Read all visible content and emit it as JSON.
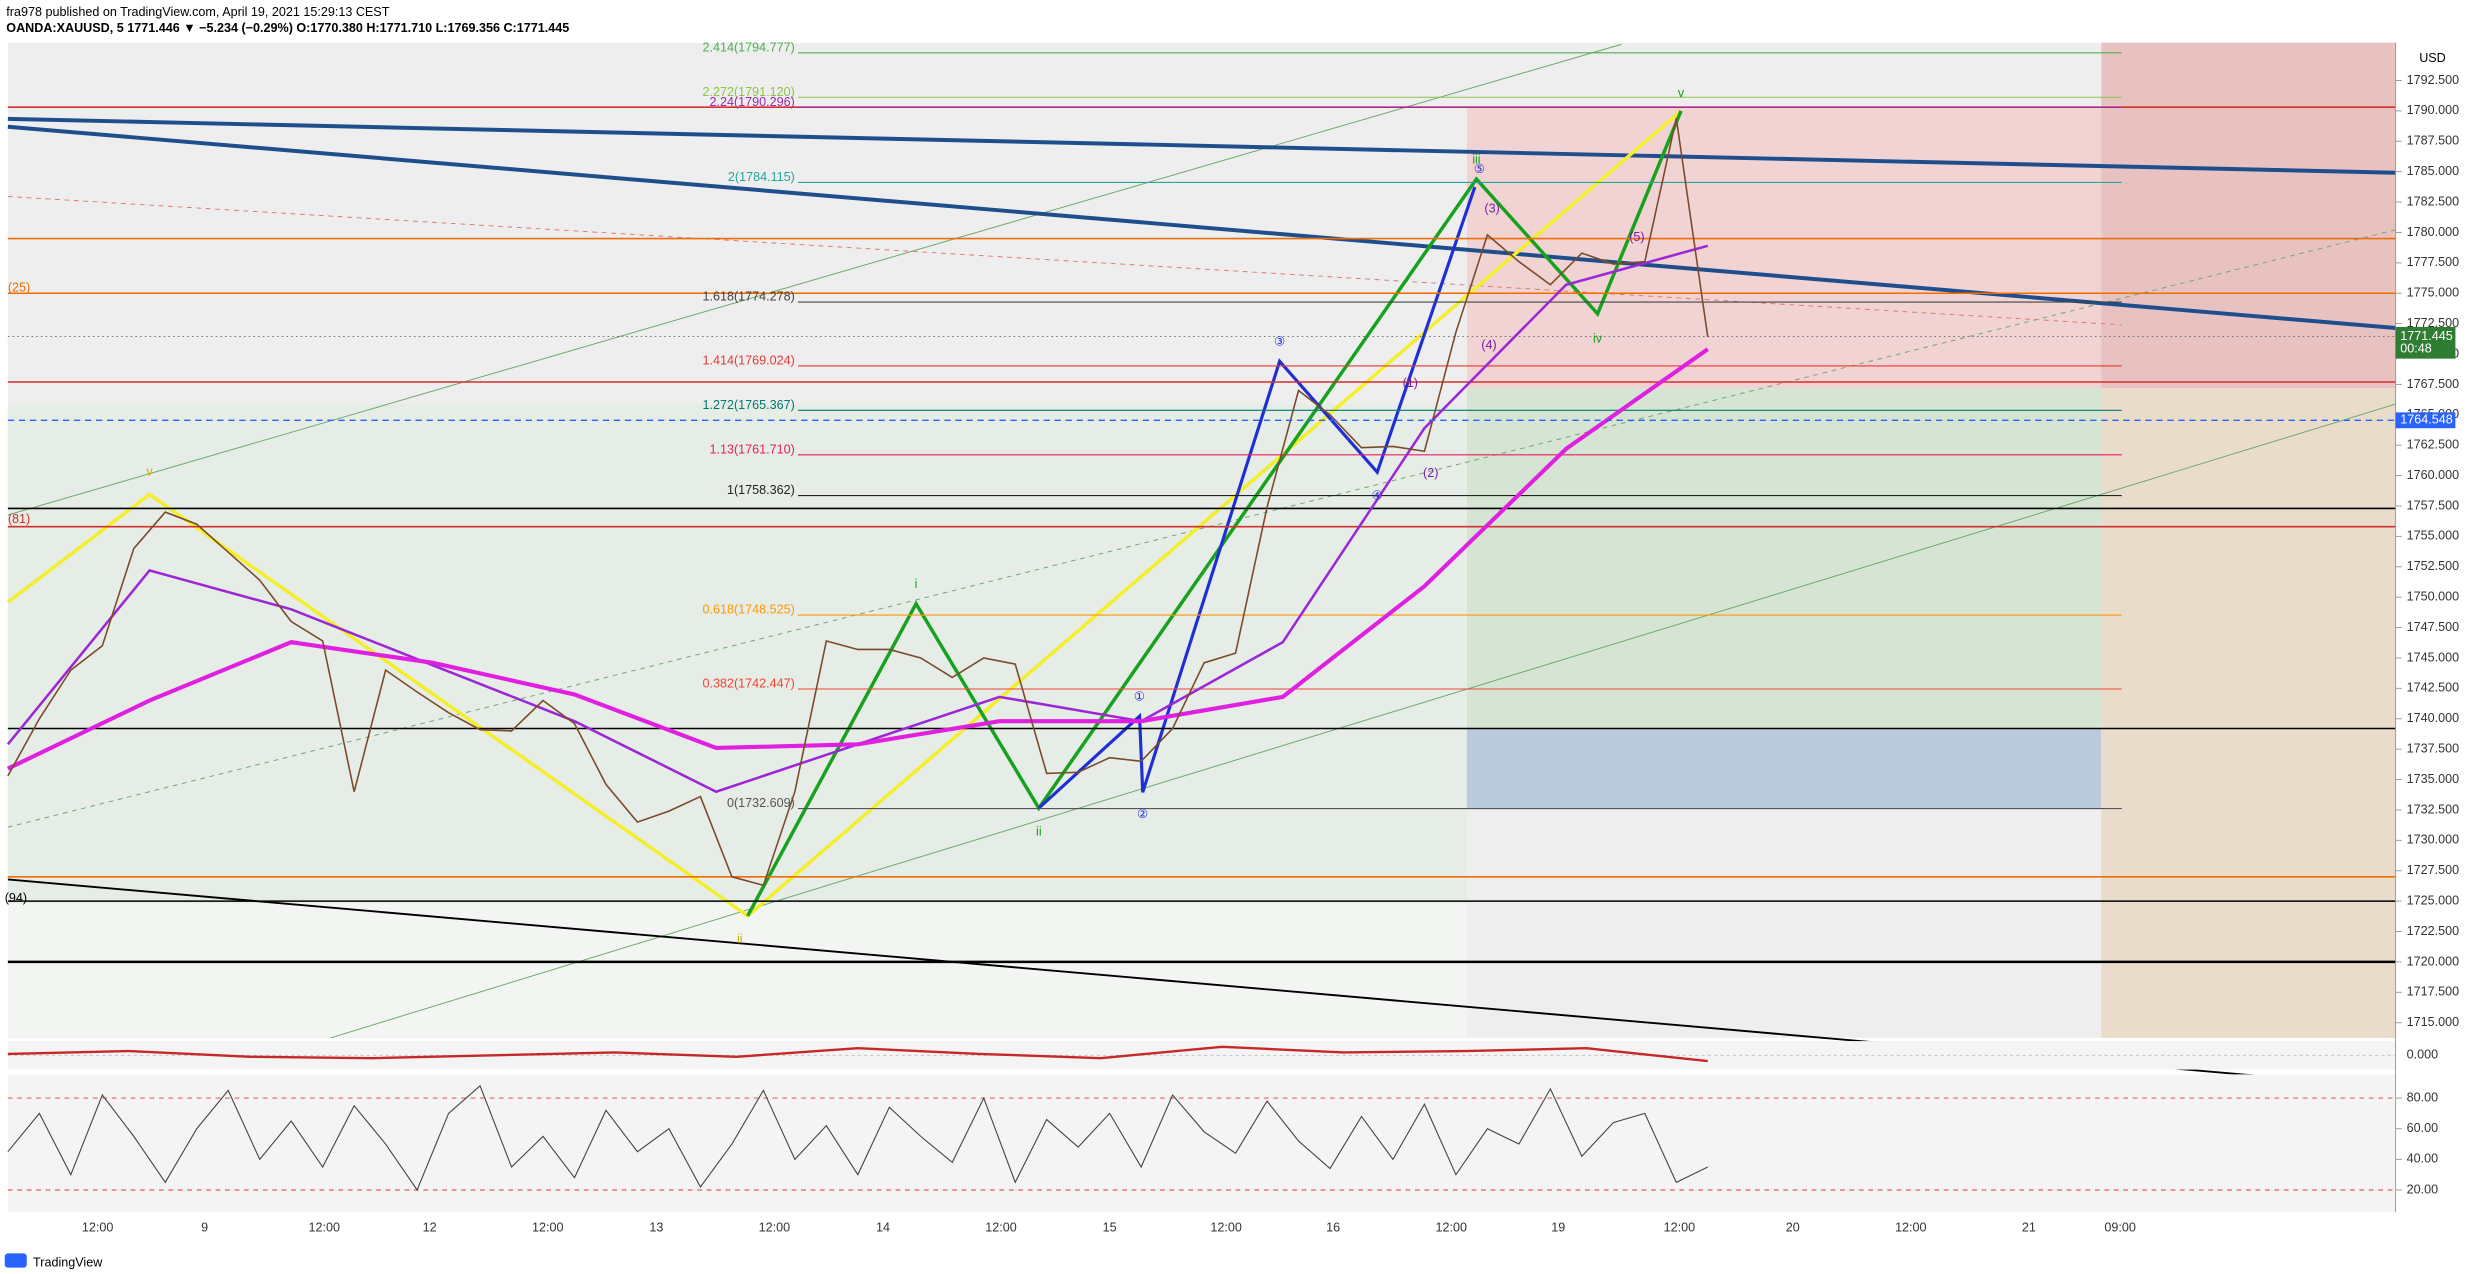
{
  "header": {
    "line1": "fra978 published on TradingView.com, April 19, 2021 15:29:13 CEST",
    "line2": "OANDA:XAUUSD, 5  1771.446 ▼ −5.234 (−0.29%) O:1770.380 H:1771.710 L:1769.356 C:1771.445"
  },
  "price_chart": {
    "currency": "USD",
    "ylim": [
      1713.75,
      1795.6
    ],
    "yticks": [
      {
        "value": 1715,
        "label": "1715.000"
      },
      {
        "value": 1717.5,
        "label": "1717.500"
      },
      {
        "value": 1720,
        "label": "1720.000"
      },
      {
        "value": 1722.5,
        "label": "1722.500"
      },
      {
        "value": 1725,
        "label": "1725.000"
      },
      {
        "value": 1727.5,
        "label": "1727.500"
      },
      {
        "value": 1730,
        "label": "1730.000"
      },
      {
        "value": 1732.5,
        "label": "1732.500"
      },
      {
        "value": 1735,
        "label": "1735.000"
      },
      {
        "value": 1737.5,
        "label": "1737.500"
      },
      {
        "value": 1740,
        "label": "1740.000"
      },
      {
        "value": 1742.5,
        "label": "1742.500"
      },
      {
        "value": 1745,
        "label": "1745.000"
      },
      {
        "value": 1747.5,
        "label": "1747.500"
      },
      {
        "value": 1750,
        "label": "1750.000"
      },
      {
        "value": 1752.5,
        "label": "1752.500"
      },
      {
        "value": 1755,
        "label": "1755.000"
      },
      {
        "value": 1757.5,
        "label": "1757.500"
      },
      {
        "value": 1760,
        "label": "1760.000"
      },
      {
        "value": 1762.5,
        "label": "1762.500"
      },
      {
        "value": 1765,
        "label": "1765.000"
      },
      {
        "value": 1767.5,
        "label": "1767.500"
      },
      {
        "value": 1770,
        "label": "1770.000"
      },
      {
        "value": 1772.5,
        "label": "1772.500"
      },
      {
        "value": 1775,
        "label": "1775.000"
      },
      {
        "value": 1777.5,
        "label": "1777.500"
      },
      {
        "value": 1780,
        "label": "1780.000"
      },
      {
        "value": 1782.5,
        "label": "1782.500"
      },
      {
        "value": 1785,
        "label": "1785.000"
      },
      {
        "value": 1787.5,
        "label": "1787.500"
      },
      {
        "value": 1790,
        "label": "1790.000"
      },
      {
        "value": 1792.5,
        "label": "1792.500"
      }
    ],
    "price": {
      "color": "#7a4a2a",
      "values": [
        1735.3,
        1740,
        1744,
        1746,
        1754,
        1757,
        1756,
        1753.7,
        1751.4,
        1748,
        1746.4,
        1734,
        1744,
        1742.2,
        1740.5,
        1739.1,
        1739,
        1741.5,
        1739.6,
        1734.6,
        1731.5,
        1732.4,
        1733.6,
        1727,
        1726.3,
        1734,
        1746.4,
        1745.7,
        1745.7,
        1745,
        1743.4,
        1745,
        1744.5,
        1735.5,
        1735.6,
        1736.8,
        1736.5,
        1739.2,
        1744.6,
        1745.4,
        1757.4,
        1767,
        1765,
        1762.3,
        1762.4,
        1762,
        1771.8,
        1779.8,
        1777.6,
        1775.7,
        1778.3,
        1777.4,
        1777.6,
        1789.4,
        1771.4
      ]
    },
    "moving_averages": [
      {
        "color": "#9c27d6",
        "values": [
          1737.9,
          1752.2,
          1749,
          1744.4,
          1739.8,
          1734,
          1737.9,
          1741.8,
          1739.8,
          1746.3,
          1763.9,
          1775.7,
          1778.9
        ]
      },
      {
        "color": "#e020e0",
        "values": [
          1735.9,
          1741.5,
          1746.3,
          1744.6,
          1742,
          1737.6,
          1737.9,
          1739.8,
          1739.8,
          1741.8,
          1750.9,
          1762.2,
          1770.4
        ]
      }
    ],
    "fib_levels": [
      {
        "label": "2.414(1794.777)",
        "value": 1794.777,
        "color": "#4caf50"
      },
      {
        "label": "2.272(1791.120)",
        "value": 1791.12,
        "color": "#8bc34a"
      },
      {
        "label": "2.24(1790.296)",
        "value": 1790.296,
        "color": "#9c27b0"
      },
      {
        "label": "2(1784.115)",
        "value": 1784.115,
        "color": "#26a69a"
      },
      {
        "label": "1.618(1774.278)",
        "value": 1774.278,
        "color": "#444444"
      },
      {
        "label": "1.414(1769.024)",
        "value": 1769.024,
        "color": "#e53935"
      },
      {
        "label": "1.272(1765.367)",
        "value": 1765.367,
        "color": "#00796b"
      },
      {
        "label": "1.13(1761.710)",
        "value": 1761.71,
        "color": "#e91e63"
      },
      {
        "label": "1(1758.362)",
        "value": 1758.362,
        "color": "#222222"
      },
      {
        "label": "0.618(1748.525)",
        "value": 1748.525,
        "color": "#ff9800"
      },
      {
        "label": "0.382(1742.447)",
        "value": 1742.447,
        "color": "#f44336"
      },
      {
        "label": "0(1732.609)",
        "value": 1732.609,
        "color": "#555555"
      }
    ],
    "levels": [
      {
        "value": 1790.3,
        "color": "#d32f2f"
      },
      {
        "value": 1779.5,
        "color": "#ef6c00"
      },
      {
        "value": 1775,
        "color": "#ef6c00"
      },
      {
        "value": 1767.7,
        "color": "#d32f2f"
      },
      {
        "value": 1757.3,
        "color": "#000000"
      },
      {
        "value": 1755.8,
        "color": "#d32f2f"
      },
      {
        "value": 1739.2,
        "color": "#000000"
      },
      {
        "value": 1727,
        "color": "#ef6c00"
      },
      {
        "value": 1725,
        "color": "#000000"
      },
      {
        "value": 1720,
        "color": "#000000"
      }
    ],
    "last_price": {
      "value": 1771.445,
      "label": "1771.445",
      "countdown": "00:48"
    },
    "alert": {
      "value": 1764.548,
      "label": "1764.548"
    },
    "cut_labels": [
      "(25)",
      "(81)",
      "(94)"
    ],
    "waves": [
      "v",
      "ii",
      "i",
      "ii",
      "iii",
      "iv",
      "v",
      "①",
      "②",
      "③",
      "④",
      "⑤",
      "(1)",
      "(2)",
      "(3)",
      "(4)",
      "(5)"
    ]
  },
  "macd": {
    "ylim": [
      -1,
      1
    ],
    "yticks": [
      {
        "value": 0,
        "label": "0.000"
      }
    ],
    "values": [
      0.1,
      0.3,
      -0.1,
      -0.2,
      0,
      0.2,
      -0.1,
      0.5,
      0.1,
      -0.2,
      0.6,
      0.2,
      0.3,
      0.5,
      -0.4
    ]
  },
  "rsi": {
    "ylim": [
      5.5,
      95.5
    ],
    "yticks": [
      {
        "value": 80,
        "label": "80.00"
      },
      {
        "value": 60,
        "label": "60.00"
      },
      {
        "value": 40,
        "label": "40.00"
      },
      {
        "value": 20,
        "label": "20.00"
      }
    ],
    "bands": [
      80,
      20
    ],
    "values": [
      45,
      70,
      30,
      82,
      55,
      25,
      60,
      85,
      40,
      65,
      35,
      75,
      50,
      20,
      70,
      88,
      35,
      55,
      28,
      72,
      45,
      60,
      22,
      50,
      85,
      40,
      62,
      30,
      74,
      55,
      38,
      80,
      25,
      66,
      48,
      70,
      35,
      82,
      58,
      44,
      78,
      52,
      34,
      68,
      40,
      76,
      30,
      60,
      50,
      86,
      42,
      64,
      70,
      25,
      35
    ]
  },
  "time_axis": {
    "labels": [
      "12:00",
      "9",
      "12:00",
      "12",
      "12:00",
      "13",
      "12:00",
      "14",
      "12:00",
      "15",
      "12:00",
      "16",
      "12:00",
      "19",
      "12:00",
      "20",
      "12:00",
      "21",
      "09:00"
    ]
  },
  "footer": "TradingView"
}
